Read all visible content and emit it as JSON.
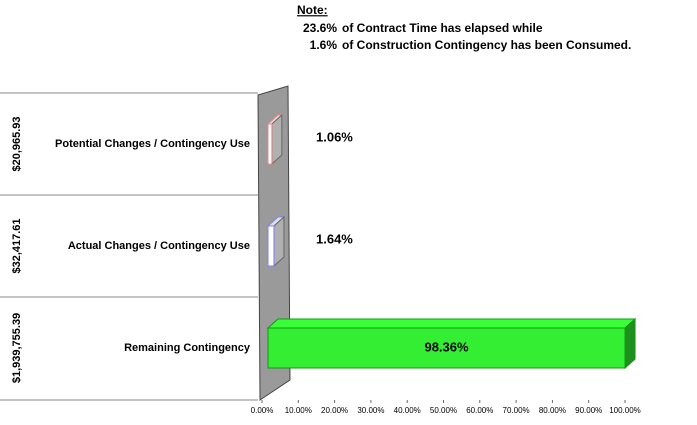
{
  "chart_data": {
    "type": "bar",
    "orientation": "horizontal",
    "note": {
      "title": "Note:",
      "lines": [
        {
          "value": "23.6%",
          "text": "of Contract Time has elapsed while"
        },
        {
          "value": "1.6%",
          "text": "of Construction Contingency has been Consumed."
        }
      ]
    },
    "categories": [
      "Potential Changes / Contingency Use",
      "Actual Changes / Contingency Use",
      "Remaining Contingency"
    ],
    "amount_labels": [
      "$20,965.93",
      "$32,417.61",
      "$1,939,755.39"
    ],
    "values": [
      1.06,
      1.64,
      98.36
    ],
    "value_labels": [
      "1.06%",
      "1.64%",
      "98.36%"
    ],
    "colors": [
      "#ff8080",
      "#8080ff",
      "#33ee33"
    ],
    "xlim": [
      0,
      100
    ],
    "xticks": [
      {
        "value": 0,
        "label": "0.00%"
      },
      {
        "value": 10,
        "label": "10.00%"
      },
      {
        "value": 20,
        "label": "20.00%"
      },
      {
        "value": 30,
        "label": "30.00%"
      },
      {
        "value": 40,
        "label": "40.00%"
      },
      {
        "value": 50,
        "label": "50.00%"
      },
      {
        "value": 60,
        "label": "60.00%"
      },
      {
        "value": 70,
        "label": "70.00%"
      },
      {
        "value": 80,
        "label": "80.00%"
      },
      {
        "value": 90,
        "label": "90.00%"
      },
      {
        "value": 100,
        "label": "100.00%"
      }
    ]
  }
}
